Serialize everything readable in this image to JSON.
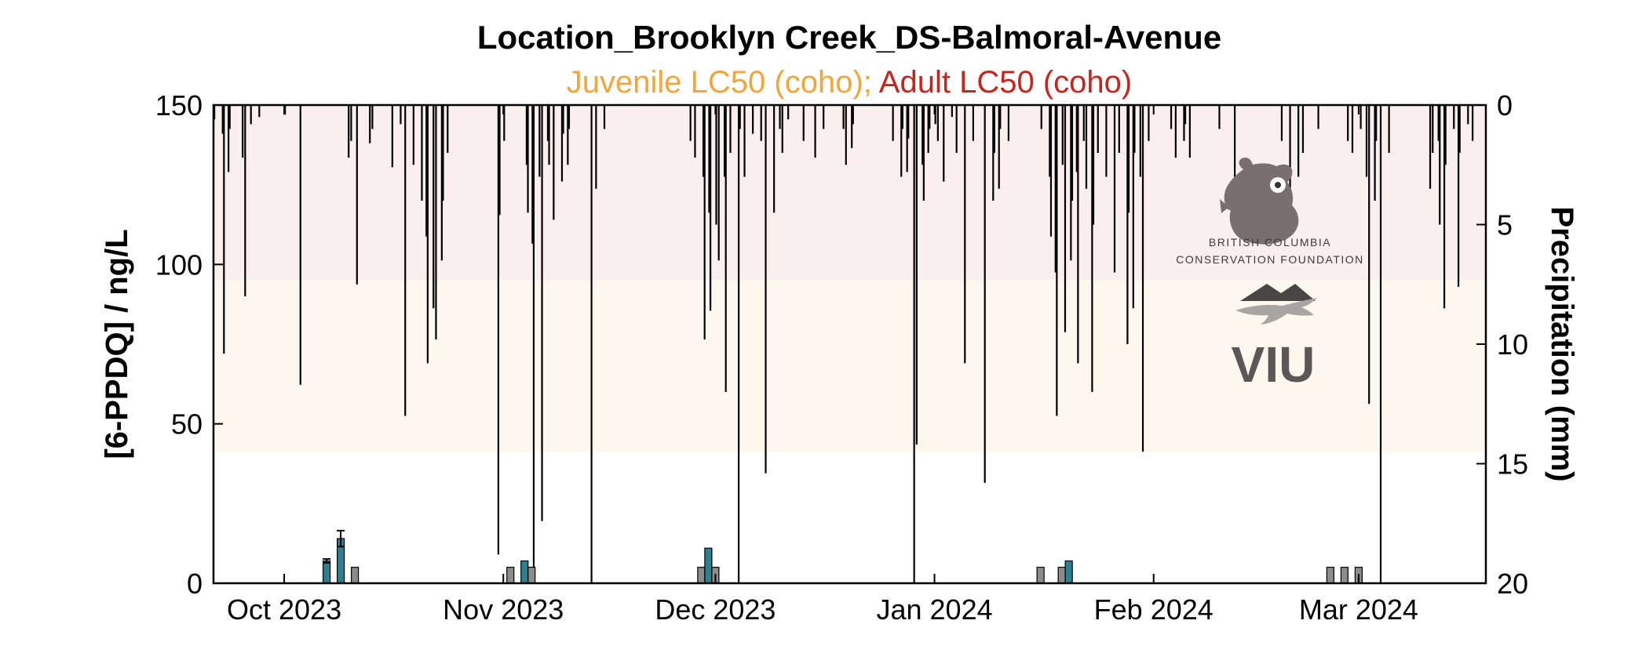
{
  "chart_data": {
    "type": "bar",
    "title": "Location_Brooklyn Creek_DS-Balmoral-Avenue",
    "subtitle": [
      {
        "text": "Juvenile LC50 (coho);",
        "color": "#f2a63a"
      },
      {
        "text": " Adult LC50 (coho)",
        "color": "#c8241d"
      }
    ],
    "ylabel": "[6-PPDQ] / ng/L",
    "y2label": "Precipitation (mm)",
    "ylim": [
      0,
      150
    ],
    "y2lim": [
      0,
      20
    ],
    "y2_inverted": true,
    "yticks": [
      0,
      50,
      100,
      150
    ],
    "y2ticks": [
      0,
      5,
      10,
      15,
      20
    ],
    "xlim": [
      "2023-09-21",
      "2024-03-19"
    ],
    "xticks": [
      {
        "date": "2023-10-01",
        "label": "Oct 2023"
      },
      {
        "date": "2023-11-01",
        "label": "Nov 2023"
      },
      {
        "date": "2023-12-01",
        "label": "Dec 2023"
      },
      {
        "date": "2024-01-01",
        "label": "Jan 2024"
      },
      {
        "date": "2024-02-01",
        "label": "Feb 2024"
      },
      {
        "date": "2024-03-01",
        "label": "Mar 2024"
      }
    ],
    "bands": [
      {
        "name": "Adult LC50 (coho)",
        "from": 95,
        "to": 150,
        "color": "#fbeeee"
      },
      {
        "name": "Juvenile LC50 (coho)",
        "from": 41,
        "to": 95,
        "color": "#fdf8ee"
      }
    ],
    "concentration": [
      {
        "date": "2023-10-07",
        "value": 7,
        "kind": "detect",
        "err": 0.6
      },
      {
        "date": "2023-10-09",
        "value": 14,
        "kind": "detect",
        "err": 2.5
      },
      {
        "date": "2023-10-11",
        "value": 5,
        "kind": "nondetect"
      },
      {
        "date": "2023-11-02",
        "value": 5,
        "kind": "nondetect"
      },
      {
        "date": "2023-11-04",
        "value": 7,
        "kind": "detect"
      },
      {
        "date": "2023-11-05",
        "value": 5,
        "kind": "nondetect"
      },
      {
        "date": "2023-11-29",
        "value": 5,
        "kind": "nondetect"
      },
      {
        "date": "2023-11-30",
        "value": 11,
        "kind": "detect"
      },
      {
        "date": "2023-12-01",
        "value": 5,
        "kind": "nondetect"
      },
      {
        "date": "2024-01-16",
        "value": 5,
        "kind": "nondetect"
      },
      {
        "date": "2024-01-19",
        "value": 5,
        "kind": "nondetect"
      },
      {
        "date": "2024-01-20",
        "value": 7,
        "kind": "detect"
      },
      {
        "date": "2024-02-26",
        "value": 5,
        "kind": "nondetect"
      },
      {
        "date": "2024-02-28",
        "value": 5,
        "kind": "nondetect"
      },
      {
        "date": "2024-03-01",
        "value": 5,
        "kind": "nondetect"
      }
    ],
    "series_colors": {
      "detect": "#2e7f90",
      "nondetect": "#8c8c8c",
      "precip": "#000000"
    },
    "precipitation_mm": [
      [
        "2023-09-21",
        0.6
      ],
      [
        "2023-09-22",
        1.2
      ],
      [
        "2023-09-22",
        10.4
      ],
      [
        "2023-09-23",
        2.8
      ],
      [
        "2023-09-23",
        1.0
      ],
      [
        "2023-09-25",
        8.0
      ],
      [
        "2023-09-25",
        2.2
      ],
      [
        "2023-09-26",
        0.8
      ],
      [
        "2023-09-27",
        0.5
      ],
      [
        "2023-10-01",
        0.4
      ],
      [
        "2023-10-03",
        11.7
      ],
      [
        "2023-10-10",
        1.5
      ],
      [
        "2023-10-10",
        2.2
      ],
      [
        "2023-10-11",
        7.5
      ],
      [
        "2023-10-13",
        1.0
      ],
      [
        "2023-10-13",
        1.6
      ],
      [
        "2023-10-16",
        2.6
      ],
      [
        "2023-10-17",
        0.8
      ],
      [
        "2023-10-18",
        13.0
      ],
      [
        "2023-10-19",
        2.5
      ],
      [
        "2023-10-20",
        4.0
      ],
      [
        "2023-10-21",
        5.5
      ],
      [
        "2023-10-21",
        10.8
      ],
      [
        "2023-10-22",
        9.8
      ],
      [
        "2023-10-22",
        8.5
      ],
      [
        "2023-10-23",
        6.5
      ],
      [
        "2023-10-23",
        4.0
      ],
      [
        "2023-10-24",
        2.0
      ],
      [
        "2023-10-31",
        18.8
      ],
      [
        "2023-10-31",
        4.6
      ],
      [
        "2023-11-01",
        1.5
      ],
      [
        "2023-11-04",
        2.5
      ],
      [
        "2023-11-04",
        4.5
      ],
      [
        "2023-11-05",
        5.8
      ],
      [
        "2023-11-05",
        20.0
      ],
      [
        "2023-11-06",
        17.4
      ],
      [
        "2023-11-06",
        3.0
      ],
      [
        "2023-11-07",
        1.5
      ],
      [
        "2023-11-07",
        2.5
      ],
      [
        "2023-11-08",
        4.8
      ],
      [
        "2023-11-09",
        3.2
      ],
      [
        "2023-11-09",
        1.2
      ],
      [
        "2023-11-10",
        2.5
      ],
      [
        "2023-11-10",
        1.0
      ],
      [
        "2023-11-13",
        20.0
      ],
      [
        "2023-11-14",
        3.5
      ],
      [
        "2023-11-15",
        1.0
      ],
      [
        "2023-11-27",
        1.5
      ],
      [
        "2023-11-28",
        2.2
      ],
      [
        "2023-11-29",
        3.0
      ],
      [
        "2023-11-29",
        9.8
      ],
      [
        "2023-11-30",
        4.5
      ],
      [
        "2023-11-30",
        8.6
      ],
      [
        "2023-12-01",
        6.5
      ],
      [
        "2023-12-01",
        5.0
      ],
      [
        "2023-12-02",
        3.0
      ],
      [
        "2023-12-02",
        12.0
      ],
      [
        "2023-12-03",
        2.0
      ],
      [
        "2023-12-04",
        20.0
      ],
      [
        "2023-12-04",
        1.0
      ],
      [
        "2023-12-05",
        3.0
      ],
      [
        "2023-12-06",
        1.2
      ],
      [
        "2023-12-07",
        1.5
      ],
      [
        "2023-12-08",
        15.4
      ],
      [
        "2023-12-09",
        4.5
      ],
      [
        "2023-12-10",
        2.0
      ],
      [
        "2023-12-10",
        1.0
      ],
      [
        "2023-12-11",
        0.6
      ],
      [
        "2023-12-13",
        1.5
      ],
      [
        "2023-12-15",
        2.2
      ],
      [
        "2023-12-16",
        1.0
      ],
      [
        "2023-12-19",
        2.5
      ],
      [
        "2023-12-19",
        1.0
      ],
      [
        "2023-12-20",
        1.8
      ],
      [
        "2023-12-20",
        0.8
      ],
      [
        "2023-12-26",
        1.5
      ],
      [
        "2023-12-27",
        3.0
      ],
      [
        "2023-12-27",
        1.0
      ],
      [
        "2023-12-28",
        2.8
      ],
      [
        "2023-12-28",
        1.4
      ],
      [
        "2023-12-29",
        14.2
      ],
      [
        "2023-12-29",
        20.0
      ],
      [
        "2023-12-30",
        2.5
      ],
      [
        "2023-12-30",
        4.0
      ],
      [
        "2023-12-31",
        2.0
      ],
      [
        "2023-12-31",
        1.0
      ],
      [
        "2024-01-01",
        1.5
      ],
      [
        "2024-01-01",
        0.8
      ],
      [
        "2024-01-02",
        3.2
      ],
      [
        "2024-01-03",
        0.5
      ],
      [
        "2024-01-04",
        2.0
      ],
      [
        "2024-01-05",
        10.8
      ],
      [
        "2024-01-06",
        1.5
      ],
      [
        "2024-01-08",
        15.8
      ],
      [
        "2024-01-09",
        4.0
      ],
      [
        "2024-01-09",
        2.0
      ],
      [
        "2024-01-10",
        3.5
      ],
      [
        "2024-01-10",
        1.0
      ],
      [
        "2024-01-11",
        1.5
      ],
      [
        "2024-01-16",
        1.0
      ],
      [
        "2024-01-17",
        3.0
      ],
      [
        "2024-01-17",
        5.5
      ],
      [
        "2024-01-18",
        7.0
      ],
      [
        "2024-01-18",
        13.0
      ],
      [
        "2024-01-19",
        9.5
      ],
      [
        "2024-01-19",
        2.5
      ],
      [
        "2024-01-20",
        6.5
      ],
      [
        "2024-01-20",
        4.0
      ],
      [
        "2024-01-21",
        2.8
      ],
      [
        "2024-01-21",
        10.8
      ],
      [
        "2024-01-22",
        3.5
      ],
      [
        "2024-01-22",
        1.5
      ],
      [
        "2024-01-23",
        12.0
      ],
      [
        "2024-01-23",
        5.0
      ],
      [
        "2024-01-24",
        2.0
      ],
      [
        "2024-01-25",
        3.0
      ],
      [
        "2024-01-26",
        7.0
      ],
      [
        "2024-01-27",
        2.0
      ],
      [
        "2024-01-28",
        10.0
      ],
      [
        "2024-01-28",
        4.5
      ],
      [
        "2024-01-29",
        8.5
      ],
      [
        "2024-01-29",
        2.0
      ],
      [
        "2024-01-30",
        14.5
      ],
      [
        "2024-01-30",
        3.0
      ],
      [
        "2024-01-31",
        1.5
      ],
      [
        "2024-02-03",
        1.0
      ],
      [
        "2024-02-04",
        2.2
      ],
      [
        "2024-02-05",
        1.5
      ],
      [
        "2024-02-05",
        0.8
      ],
      [
        "2024-02-06",
        2.2
      ],
      [
        "2024-02-10",
        1.0
      ],
      [
        "2024-02-12",
        3.0
      ],
      [
        "2024-02-19",
        1.5
      ],
      [
        "2024-02-20",
        4.5
      ],
      [
        "2024-02-21",
        3.0
      ],
      [
        "2024-02-22",
        2.0
      ],
      [
        "2024-02-24",
        1.0
      ],
      [
        "2024-02-28",
        1.5
      ],
      [
        "2024-02-29",
        2.0
      ],
      [
        "2024-03-01",
        1.0
      ],
      [
        "2024-03-02",
        12.5
      ],
      [
        "2024-03-02",
        3.0
      ],
      [
        "2024-03-03",
        4.0
      ],
      [
        "2024-03-03",
        1.5
      ],
      [
        "2024-03-04",
        20.0
      ],
      [
        "2024-03-05",
        2.0
      ],
      [
        "2024-03-11",
        2.0
      ],
      [
        "2024-03-11",
        3.5
      ],
      [
        "2024-03-12",
        1.5
      ],
      [
        "2024-03-12",
        5.0
      ],
      [
        "2024-03-13",
        8.5
      ],
      [
        "2024-03-13",
        2.5
      ],
      [
        "2024-03-14",
        1.0
      ],
      [
        "2024-03-15",
        7.6
      ],
      [
        "2024-03-15",
        2.0
      ],
      [
        "2024-03-16",
        0.8
      ],
      [
        "2024-03-17",
        1.5
      ]
    ]
  },
  "logos": {
    "bccf_line1": "BRITISH COLUMBIA",
    "bccf_line2": "CONSERVATION FOUNDATION",
    "viu_text": "VIU"
  }
}
